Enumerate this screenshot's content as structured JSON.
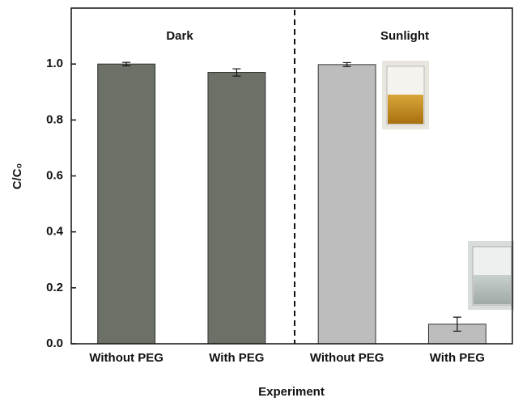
{
  "chart_data": {
    "type": "bar",
    "x_label": "Experiment",
    "y_label": "C/C₀",
    "categories": [
      "Without PEG",
      "With PEG",
      "Without PEG",
      "With PEG"
    ],
    "values": [
      1.0,
      0.97,
      0.998,
      0.07
    ],
    "errors": [
      0.006,
      0.013,
      0.007,
      0.025
    ],
    "colors": [
      "#6b7167",
      "#6b7167",
      "#bdbdbd",
      "#bdbdbd"
    ],
    "annotations": [
      "Dark",
      "Sunlight"
    ],
    "ylim": [
      0,
      1.2
    ],
    "yticks": [
      {
        "value": 0,
        "label": "0.0"
      },
      {
        "value": 0.2,
        "label": "0.2"
      },
      {
        "value": 0.4,
        "label": "0.4"
      },
      {
        "value": 0.6,
        "label": "0.6"
      },
      {
        "value": 0.8,
        "label": "0.8"
      },
      {
        "value": 1.0,
        "label": "1.0"
      }
    ]
  }
}
